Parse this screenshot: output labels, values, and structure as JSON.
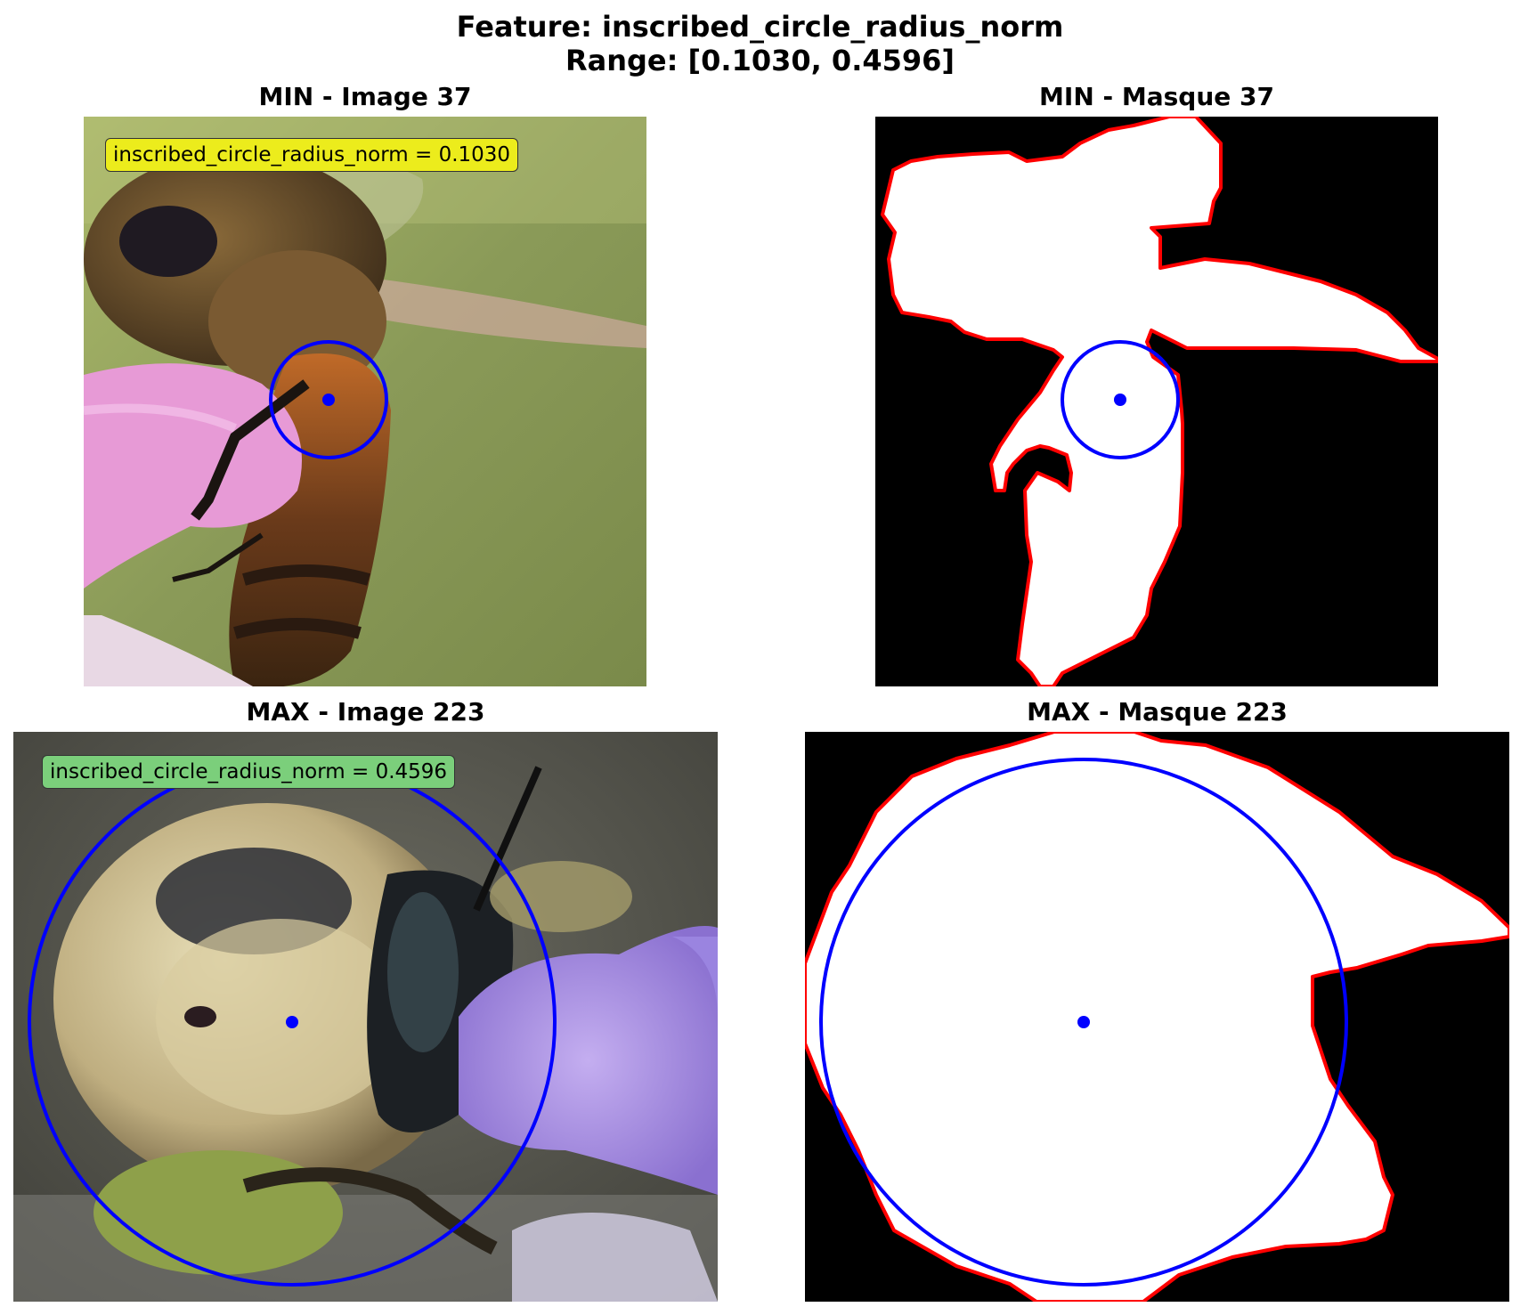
{
  "figure": {
    "title_line1": "Feature: inscribed_circle_radius_norm",
    "title_line2": "Range: [0.1030, 0.4596]"
  },
  "panels": {
    "min_image": {
      "title": "MIN - Image 37",
      "label": "inscribed_circle_radius_norm = 0.1030",
      "label_color": "#ecec1c",
      "description": "Honeybee on pink flower, green background"
    },
    "min_mask": {
      "title": "MIN - Masque 37"
    },
    "max_image": {
      "title": "MAX - Image 223",
      "label": "inscribed_circle_radius_norm = 0.4596",
      "label_color": "#7bcf7b",
      "description": "Fuzzy bee on purple flower"
    },
    "max_mask": {
      "title": "MAX - Masque 223"
    }
  },
  "colors": {
    "circle": "#0000ff",
    "contour": "#ff0000",
    "mask_bg": "#000000",
    "mask_fg": "#ffffff"
  }
}
